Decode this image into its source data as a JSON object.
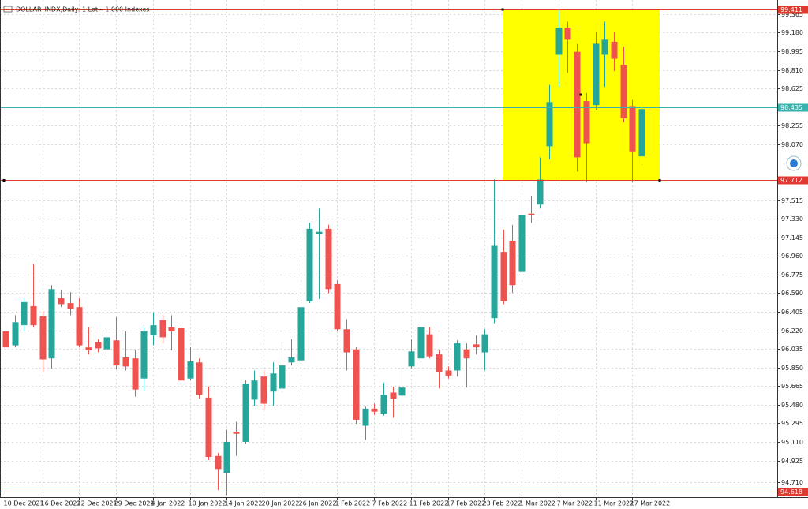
{
  "chart_data": {
    "type": "candlestick",
    "title": "DOLLAR_INDX,Daily:  1 Lot= 1,000 Indexes",
    "up_color": "#26a69a",
    "down_color": "#ef5350",
    "grid": true,
    "ylim": [
      94.56,
      99.466
    ],
    "yticks": [
      99.365,
      {
        "value": 99.18,
        "label": "99.180"
      },
      98.995,
      {
        "value": 98.81,
        "label": "98.810"
      },
      98.625,
      98.255,
      {
        "value": 98.07,
        "label": "98.070"
      },
      97.515,
      {
        "value": 97.33,
        "label": "97.330"
      },
      97.145,
      {
        "value": 96.96,
        "label": "96.960"
      },
      96.775,
      {
        "value": 96.59,
        "label": "96.590"
      },
      96.405,
      {
        "value": 96.22,
        "label": "96.220"
      },
      96.035,
      {
        "value": 95.85,
        "label": "95.850"
      },
      95.665,
      {
        "value": 95.48,
        "label": "95.480"
      },
      95.295,
      {
        "value": 95.11,
        "label": "95.110"
      },
      94.925,
      {
        "value": 94.71,
        "label": "94.710"
      }
    ],
    "categories": [
      "10 Dec 2021",
      null,
      null,
      null,
      "16 Dec 2021",
      null,
      null,
      null,
      "22 Dec 2021",
      null,
      null,
      null,
      "29 Dec 2021",
      null,
      null,
      null,
      "4 Jan 2022",
      null,
      null,
      null,
      "10 Jan 2022",
      null,
      null,
      null,
      "14 Jan 2022",
      null,
      null,
      null,
      "20 Jan 2022",
      null,
      null,
      null,
      "26 Jan 2022",
      null,
      null,
      null,
      "1 Feb 2022",
      null,
      null,
      null,
      "7 Feb 2022",
      null,
      null,
      null,
      "11 Feb 2022",
      null,
      null,
      null,
      "17 Feb 2022",
      null,
      null,
      null,
      "23 Feb 2022",
      null,
      null,
      null,
      "1 Mar 2022",
      null,
      null,
      null,
      "7 Mar 2022",
      null,
      null,
      null,
      "11 Mar 2022",
      null,
      null,
      null,
      "17 Mar 2022",
      null
    ],
    "open": [
      96.21,
      96.07,
      96.27,
      96.46,
      96.36,
      95.94,
      96.54,
      96.49,
      96.45,
      96.05,
      96.1,
      96.03,
      96.12,
      95.95,
      95.94,
      95.74,
      96.17,
      96.32,
      96.25,
      96.24,
      95.74,
      95.9,
      95.55,
      94.97,
      94.8,
      95.21,
      95.11,
      95.53,
      95.76,
      95.61,
      95.64,
      95.9,
      95.92,
      96.51,
      97.18,
      97.23,
      96.68,
      96.23,
      96.03,
      95.27,
      95.44,
      95.39,
      95.6,
      95.57,
      95.86,
      95.94,
      96.18,
      95.98,
      95.82,
      95.82,
      96.03,
      96.08,
      96.0,
      96.34,
      97.0,
      97.11,
      96.8,
      97.38,
      97.47,
      98.05,
      98.96,
      99.23,
      98.99,
      98.5,
      98.46,
      98.96,
      99.09,
      98.86,
      98.45,
      97.95
    ],
    "high": [
      96.33,
      96.37,
      96.54,
      96.88,
      96.41,
      96.67,
      96.62,
      96.6,
      96.54,
      96.25,
      96.13,
      96.23,
      96.35,
      96.21,
      96.02,
      96.25,
      96.4,
      96.37,
      96.37,
      96.25,
      96.05,
      95.94,
      95.66,
      95.0,
      95.23,
      95.31,
      95.72,
      95.82,
      95.82,
      95.9,
      96.11,
      96.13,
      96.5,
      97.29,
      97.43,
      97.27,
      96.72,
      96.33,
      96.05,
      95.46,
      95.49,
      95.7,
      95.66,
      95.82,
      96.13,
      96.41,
      96.25,
      96.02,
      95.86,
      96.12,
      96.09,
      96.17,
      96.23,
      97.72,
      97.22,
      97.27,
      97.5,
      97.56,
      97.94,
      98.66,
      99.41,
      99.29,
      99.07,
      98.58,
      99.19,
      99.29,
      99.19,
      99.04,
      98.51,
      98.46
    ],
    "low": [
      96.02,
      96.05,
      96.21,
      96.25,
      95.8,
      95.84,
      96.45,
      96.37,
      96.05,
      95.98,
      96.0,
      95.98,
      95.83,
      95.82,
      95.56,
      95.62,
      96.07,
      96.09,
      96.02,
      95.69,
      95.72,
      95.54,
      94.93,
      94.63,
      94.58,
      94.97,
      95.09,
      95.47,
      95.43,
      95.47,
      95.61,
      95.87,
      95.9,
      96.49,
      96.53,
      96.59,
      96.21,
      95.82,
      95.29,
      95.13,
      95.38,
      95.37,
      95.35,
      95.15,
      95.84,
      95.9,
      95.94,
      95.64,
      95.74,
      95.76,
      95.65,
      95.98,
      95.82,
      96.29,
      96.48,
      96.59,
      96.78,
      97.29,
      97.43,
      97.92,
      98.64,
      98.78,
      97.8,
      97.69,
      98.41,
      98.64,
      98.8,
      98.29,
      97.7,
      97.83
    ],
    "close": [
      96.05,
      96.3,
      96.5,
      96.27,
      95.93,
      96.63,
      96.48,
      96.43,
      96.07,
      96.02,
      96.04,
      96.15,
      95.87,
      95.86,
      95.63,
      96.21,
      96.27,
      96.15,
      96.21,
      95.72,
      95.91,
      95.58,
      94.96,
      94.84,
      95.11,
      95.19,
      95.69,
      95.72,
      95.49,
      95.79,
      95.87,
      95.95,
      96.45,
      97.23,
      97.2,
      96.63,
      96.23,
      96.0,
      95.33,
      95.44,
      95.41,
      95.58,
      95.54,
      95.65,
      96.01,
      96.25,
      95.96,
      95.8,
      95.77,
      96.09,
      95.94,
      96.05,
      96.18,
      97.06,
      96.51,
      96.67,
      97.37,
      97.37,
      97.72,
      98.49,
      99.23,
      99.11,
      97.94,
      98.08,
      99.07,
      99.11,
      98.92,
      98.33,
      98.0,
      98.42
    ],
    "hlines": [
      {
        "value": 99.411,
        "color": "#e0392f"
      },
      {
        "value": 98.435,
        "color": "#38b2ac"
      },
      {
        "value": 97.712,
        "color": "#e0392f"
      },
      {
        "value": 94.618,
        "color": "#e0392f"
      }
    ],
    "highlight_color": "#ffff00"
  }
}
